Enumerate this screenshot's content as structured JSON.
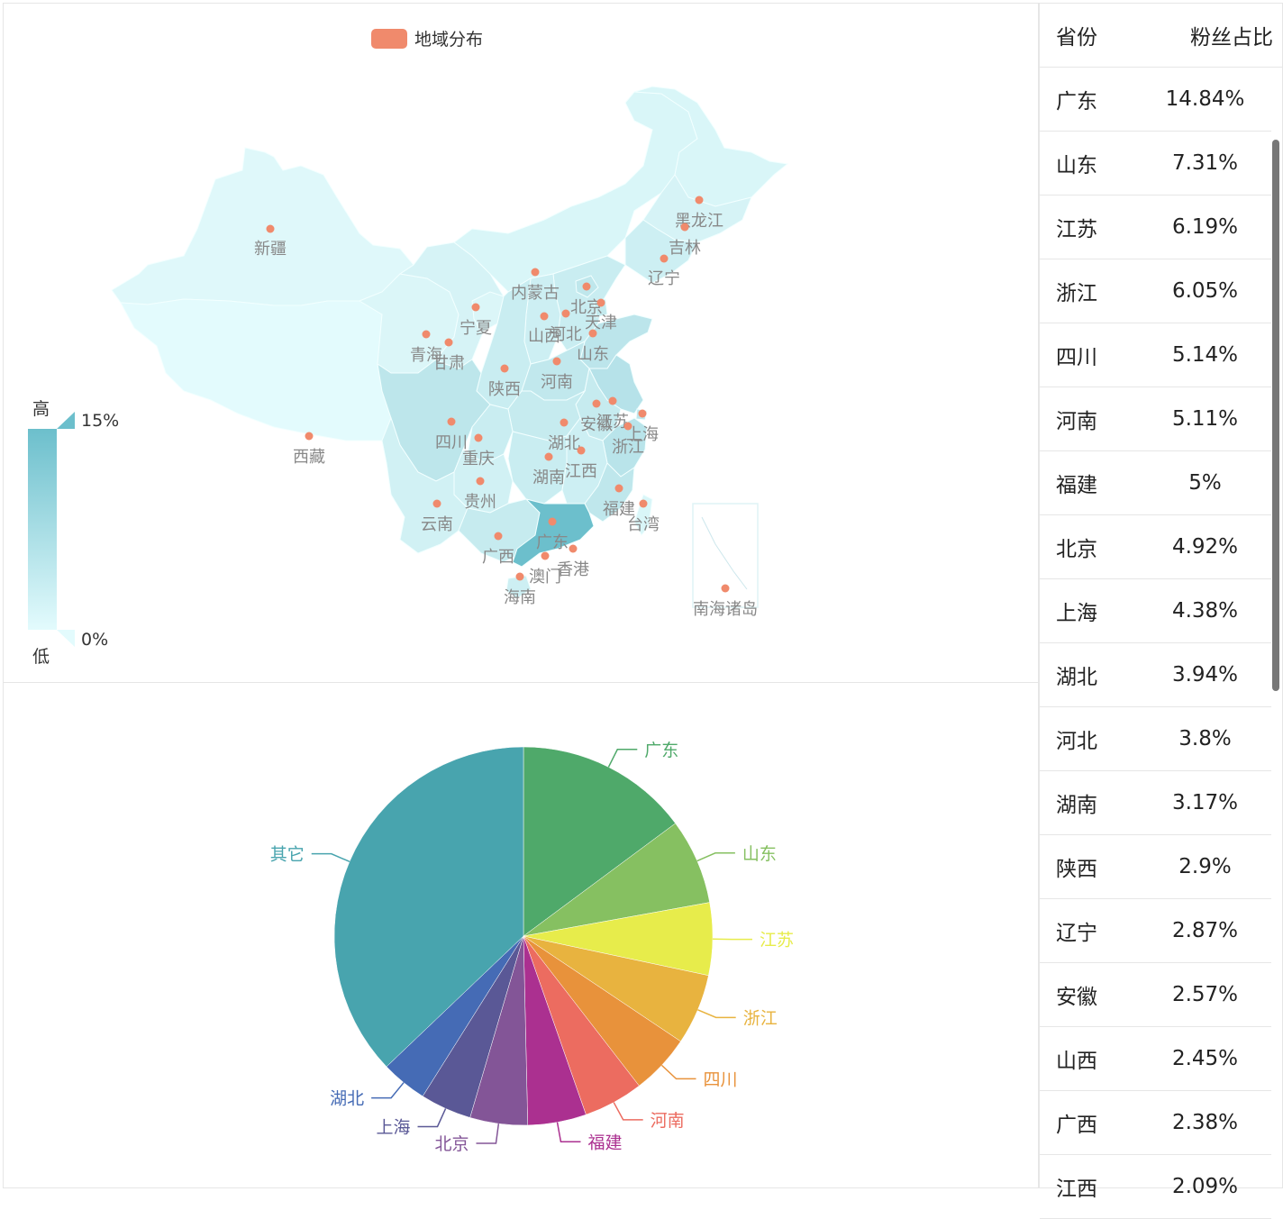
{
  "map": {
    "legend_label": "地域分布",
    "legend_color": "#f08a6c",
    "visual_map": {
      "high_label": "高",
      "low_label": "低",
      "max_text": "15%",
      "min_text": "0%",
      "color_high": "#6cbfcc",
      "color_low": "#e3fbfd"
    },
    "provinces": [
      "新疆",
      "西藏",
      "内蒙古",
      "黑龙江",
      "吉林",
      "辽宁",
      "北京",
      "天津",
      "河北",
      "山西",
      "山东",
      "宁夏",
      "青海",
      "甘肃",
      "陕西",
      "河南",
      "安徽",
      "江苏",
      "上海",
      "浙江",
      "湖北",
      "四川",
      "重庆",
      "湖南",
      "江西",
      "贵州",
      "云南",
      "福建",
      "台湾",
      "广西",
      "广东",
      "香港",
      "澳门",
      "海南",
      "南海诸岛"
    ]
  },
  "pie": {
    "slices": [
      {
        "name": "广东",
        "value": 14.84,
        "color": "#4fa96a"
      },
      {
        "name": "山东",
        "value": 7.31,
        "color": "#86c061"
      },
      {
        "name": "江苏",
        "value": 6.19,
        "color": "#e7ec4b"
      },
      {
        "name": "浙江",
        "value": 6.05,
        "color": "#e8b33f"
      },
      {
        "name": "四川",
        "value": 5.14,
        "color": "#e8923b"
      },
      {
        "name": "河南",
        "value": 5.11,
        "color": "#ec6c60"
      },
      {
        "name": "福建",
        "value": 5.0,
        "color": "#ab3090"
      },
      {
        "name": "北京",
        "value": 4.92,
        "color": "#835597"
      },
      {
        "name": "上海",
        "value": 4.38,
        "color": "#5a5896"
      },
      {
        "name": "湖北",
        "value": 3.94,
        "color": "#456bb5"
      },
      {
        "name": "其它",
        "value": 37.12,
        "color": "#48a4ae"
      }
    ]
  },
  "table": {
    "header": {
      "province": "省份",
      "ratio": "粉丝占比"
    },
    "rows": [
      {
        "province": "广东",
        "ratio": "14.84%"
      },
      {
        "province": "山东",
        "ratio": "7.31%"
      },
      {
        "province": "江苏",
        "ratio": "6.19%"
      },
      {
        "province": "浙江",
        "ratio": "6.05%"
      },
      {
        "province": "四川",
        "ratio": "5.14%"
      },
      {
        "province": "河南",
        "ratio": "5.11%"
      },
      {
        "province": "福建",
        "ratio": "5%"
      },
      {
        "province": "北京",
        "ratio": "4.92%"
      },
      {
        "province": "上海",
        "ratio": "4.38%"
      },
      {
        "province": "湖北",
        "ratio": "3.94%"
      },
      {
        "province": "河北",
        "ratio": "3.8%"
      },
      {
        "province": "湖南",
        "ratio": "3.17%"
      },
      {
        "province": "陕西",
        "ratio": "2.9%"
      },
      {
        "province": "辽宁",
        "ratio": "2.87%"
      },
      {
        "province": "安徽",
        "ratio": "2.57%"
      },
      {
        "province": "山西",
        "ratio": "2.45%"
      },
      {
        "province": "广西",
        "ratio": "2.38%"
      },
      {
        "province": "江西",
        "ratio": "2.09%"
      }
    ]
  },
  "chart_data": [
    {
      "type": "map",
      "legend": "地域分布",
      "visual_map": {
        "min": "0%",
        "max": "15%",
        "high": "高",
        "low": "低"
      },
      "regions": [
        "新疆",
        "西藏",
        "内蒙古",
        "黑龙江",
        "吉林",
        "辽宁",
        "北京",
        "天津",
        "河北",
        "山西",
        "山东",
        "宁夏",
        "青海",
        "甘肃",
        "陕西",
        "河南",
        "安徽",
        "江苏",
        "上海",
        "浙江",
        "湖北",
        "四川",
        "重庆",
        "湖南",
        "江西",
        "贵州",
        "云南",
        "福建",
        "台湾",
        "广西",
        "广东",
        "香港",
        "澳门",
        "海南",
        "南海诸岛"
      ]
    },
    {
      "type": "pie",
      "categories": [
        "广东",
        "山东",
        "江苏",
        "浙江",
        "四川",
        "河南",
        "福建",
        "北京",
        "上海",
        "湖北",
        "其它"
      ],
      "values": [
        14.84,
        7.31,
        6.19,
        6.05,
        5.14,
        5.11,
        5.0,
        4.92,
        4.38,
        3.94,
        37.12
      ]
    }
  ]
}
